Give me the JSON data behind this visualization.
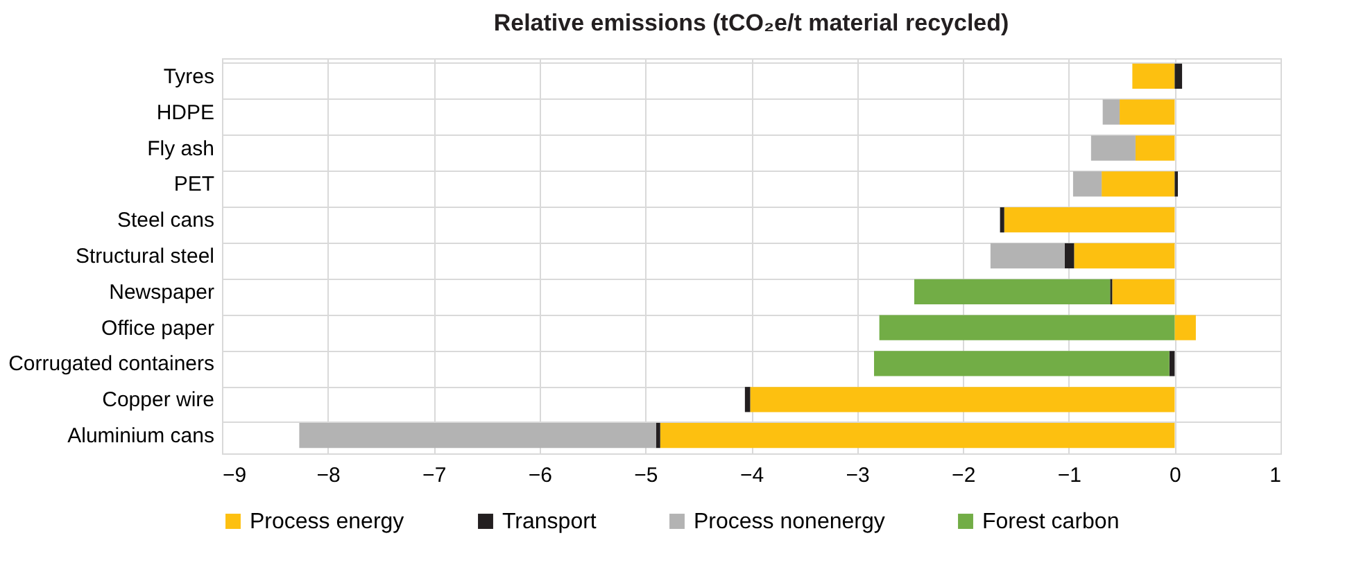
{
  "chart_data": {
    "type": "bar",
    "orientation": "horizontal",
    "stacked": true,
    "title": "Relative emissions (tCO₂e/t material recycled)",
    "categories": [
      "Tyres",
      "HDPE",
      "Fly ash",
      "PET",
      "Steel cans",
      "Structural steel",
      "Newspaper",
      "Office paper",
      "Corrugated containers",
      "Copper wire",
      "Aluminium cans"
    ],
    "series": [
      {
        "name": "Process energy",
        "color": "#fdc010",
        "values": [
          -0.4,
          -0.52,
          -0.37,
          -0.69,
          -1.61,
          -0.95,
          -0.59,
          0.2,
          null,
          -4.01,
          -4.86
        ]
      },
      {
        "name": "Transport",
        "color": "#231f20",
        "values": [
          0.07,
          null,
          null,
          0.03,
          -0.04,
          -0.09,
          -0.02,
          null,
          -0.05,
          -0.05,
          -0.04
        ]
      },
      {
        "name": "Process nonenergy",
        "color": "#b3b3b3",
        "values": [
          null,
          -0.16,
          -0.42,
          -0.27,
          null,
          -0.7,
          null,
          null,
          null,
          null,
          -3.37
        ]
      },
      {
        "name": "Forest carbon",
        "color": "#72ad46",
        "values": [
          null,
          null,
          null,
          null,
          null,
          null,
          -1.85,
          -2.79,
          -2.79,
          null,
          null
        ]
      }
    ],
    "xlim": [
      -9,
      1
    ],
    "xticks": [
      -9,
      -8,
      -7,
      -6,
      -5,
      -4,
      -3,
      -2,
      -1,
      0,
      1
    ],
    "grid": true,
    "legend": "bottom"
  }
}
